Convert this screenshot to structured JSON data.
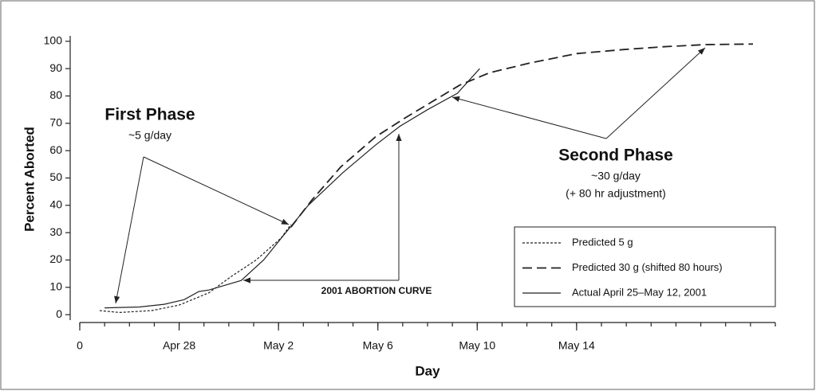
{
  "chart_data": {
    "type": "line",
    "x_label": "Day",
    "y_label": "Percent Aborted",
    "annotations": [
      "First Phase",
      "~5 g/day",
      "Second Phase",
      "~30 g/day",
      "(+ 80 hr adjustment)",
      "2001 ABORTION CURVE"
    ],
    "xlim": [
      0,
      28
    ],
    "xticks": [
      0,
      {
        "value": 4,
        "label": "Apr 28"
      },
      {
        "value": 8,
        "label": "May 2"
      },
      {
        "value": 12,
        "label": "May 6"
      },
      {
        "value": 16,
        "label": "May 10"
      },
      {
        "value": 20,
        "label": "May 14"
      }
    ],
    "minor_xtick_step": 1,
    "ylim": [
      -2,
      102
    ],
    "yticks": [
      0,
      10,
      20,
      30,
      40,
      50,
      60,
      70,
      80,
      90,
      100
    ],
    "legend_position": "lower right",
    "series": [
      {
        "name": "Predicted 5 g",
        "color": "#222222",
        "dash": "dotted",
        "x": [
          0.8,
          1.6,
          2.9,
          4,
          5.2,
          6.1,
          7.1,
          8.1,
          8.5
        ],
        "values": [
          1.5,
          0.8,
          1.5,
          3.5,
          8,
          14,
          20,
          28,
          33
        ]
      },
      {
        "name": "Predicted 30 g (shifted 80 hours)",
        "color": "#222222",
        "dash": "dashed",
        "x": [
          8.5,
          9.35,
          10.5,
          11.9,
          13.1,
          14.2,
          15.3,
          16.5,
          18.1,
          20,
          21.9,
          23.5,
          25.2,
          27.1
        ],
        "values": [
          32,
          42,
          54,
          65,
          72,
          78,
          84,
          88.5,
          92,
          95.5,
          97,
          98,
          98.8,
          99
        ]
      },
      {
        "name": "Actual April 25–May 12, 2001",
        "color": "#222222",
        "dash": "solid",
        "x": [
          1,
          2.4,
          3.4,
          4.2,
          4.8,
          5.2,
          6.5,
          7.4,
          8.2,
          9.2,
          10.6,
          11.9,
          12.9,
          14,
          15.2,
          16.1
        ],
        "values": [
          2.5,
          2.8,
          3.8,
          5.5,
          8.5,
          9,
          12.5,
          20,
          29,
          40,
          52,
          62,
          69,
          75,
          81,
          90
        ]
      }
    ]
  }
}
